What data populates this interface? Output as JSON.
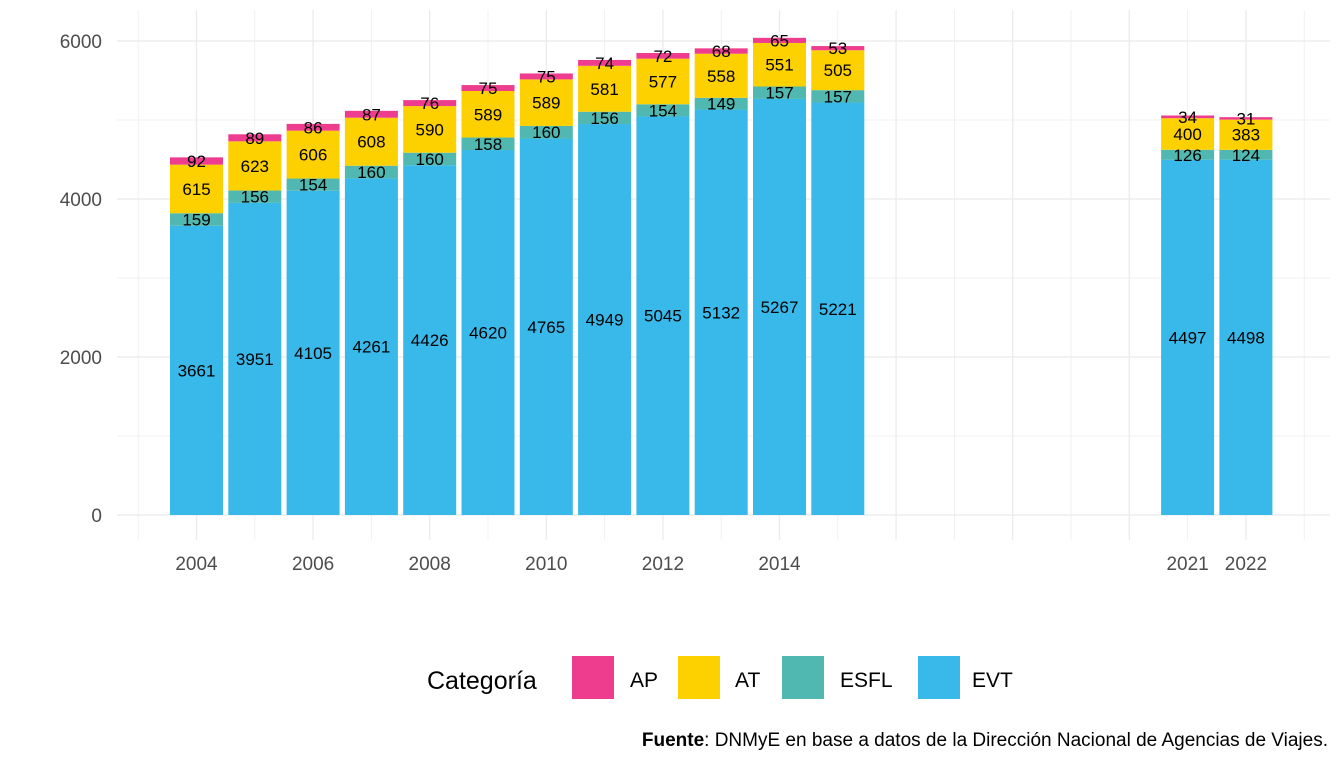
{
  "chart_data": {
    "type": "bar",
    "stacked": true,
    "categories": [
      "2004",
      "2005",
      "2006",
      "2007",
      "2008",
      "2009",
      "2010",
      "2011",
      "2012",
      "2013",
      "2014",
      "2015",
      "2021",
      "2022"
    ],
    "x_tick_labels": [
      "2004",
      "2006",
      "2008",
      "2010",
      "2012",
      "2014",
      "2021",
      "2022"
    ],
    "y_ticks": [
      0,
      2000,
      4000,
      6000
    ],
    "ylim": [
      0,
      6250
    ],
    "grid": true,
    "legend": {
      "title": "Categoría",
      "position": "bottom"
    },
    "series": [
      {
        "name": "EVT",
        "color": "#38B9EA",
        "values": [
          3661,
          3951,
          4105,
          4261,
          4426,
          4620,
          4765,
          4949,
          5045,
          5132,
          5267,
          5221,
          4497,
          4498
        ]
      },
      {
        "name": "ESFL",
        "color": "#50B8B1",
        "values": [
          159,
          156,
          154,
          160,
          160,
          158,
          160,
          156,
          154,
          149,
          157,
          157,
          126,
          124
        ]
      },
      {
        "name": "AT",
        "color": "#FDD000",
        "values": [
          615,
          623,
          606,
          608,
          590,
          589,
          589,
          581,
          577,
          558,
          551,
          505,
          400,
          383
        ]
      },
      {
        "name": "AP",
        "color": "#EE3D8F",
        "values": [
          92,
          89,
          86,
          87,
          76,
          75,
          75,
          74,
          72,
          68,
          65,
          53,
          34,
          31
        ]
      }
    ],
    "legend_order": [
      "AP",
      "AT",
      "ESFL",
      "EVT"
    ]
  },
  "caption": {
    "bold": "Fuente",
    "text": ": DNMyE en base a datos de la Dirección Nacional de Agencias de Viajes."
  }
}
